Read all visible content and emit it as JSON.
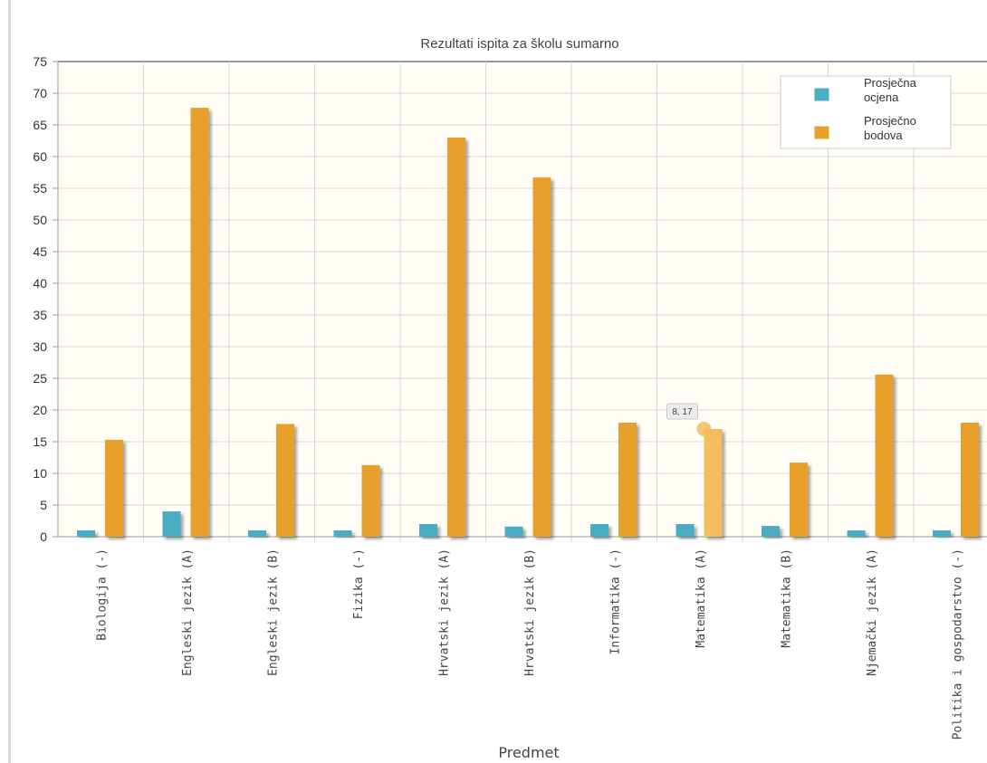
{
  "chart_data": {
    "type": "bar",
    "title": "Rezultati ispita za školu sumarno",
    "xlabel": "Predmet",
    "ylabel": "",
    "ylim": [
      0,
      75
    ],
    "yticks": [
      0,
      5,
      10,
      15,
      20,
      25,
      30,
      35,
      40,
      45,
      50,
      55,
      60,
      65,
      70,
      75
    ],
    "grid": true,
    "legend_position": "top-right",
    "categories": [
      "Biologija (-)",
      "Engleski jezik (A)",
      "Engleski jezik (B)",
      "Fizika (-)",
      "Hrvatski jezik (A)",
      "Hrvatski jezik (B)",
      "Informatika (-)",
      "Matematika (A)",
      "Matematika (B)",
      "Njemački jezik (A)",
      "Politika i gospodarstvo (-)"
    ],
    "series": [
      {
        "name": "Prosječna ocjena",
        "color": "#4aaec4",
        "values": [
          1,
          4,
          1,
          1,
          2,
          1.6,
          2,
          2,
          1.7,
          1,
          1
        ]
      },
      {
        "name": "Prosječno bodova",
        "color": "#e9a02a",
        "values": [
          15.3,
          67.7,
          17.8,
          11.3,
          63,
          56.7,
          18,
          17,
          11.7,
          25.6,
          18
        ]
      }
    ],
    "highlight": {
      "series_index": 1,
      "category_index": 7,
      "color": "#f4be5e",
      "tooltip": "8, 17"
    }
  }
}
